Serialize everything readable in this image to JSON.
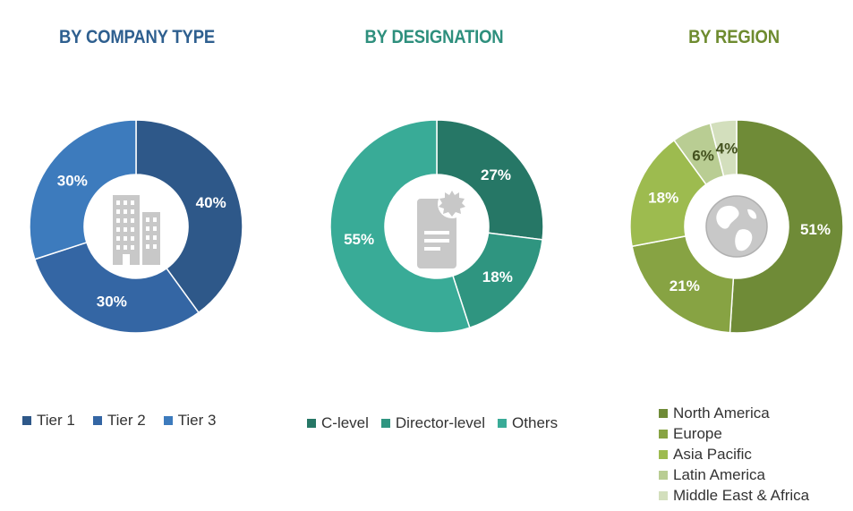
{
  "chart_data": [
    {
      "type": "pie",
      "title": "BY COMPANY TYPE",
      "title_color": "#2e5f8f",
      "categories": [
        "Tier 1",
        "Tier 2",
        "Tier 3"
      ],
      "values": [
        40,
        30,
        30
      ],
      "labels": [
        "40%",
        "30%",
        "30%"
      ],
      "colors": [
        "#2e5889",
        "#3466a4",
        "#3d7bbd"
      ],
      "center_icon": "building-icon",
      "legend_placement": "bottom"
    },
    {
      "type": "pie",
      "title": "BY DESIGNATION",
      "title_color": "#2e8f7d",
      "categories": [
        "C-level",
        "Director-level",
        "Others"
      ],
      "values": [
        27,
        18,
        55
      ],
      "labels": [
        "27%",
        "18%",
        "55%"
      ],
      "colors": [
        "#267766",
        "#2f9580",
        "#39ab97"
      ],
      "center_icon": "certificate-document-icon",
      "legend_placement": "bottom"
    },
    {
      "type": "pie",
      "title": "BY REGION",
      "title_color": "#6e8b2f",
      "categories": [
        "North America",
        "Europe",
        "Asia Pacific",
        "Latin America",
        "Middle East & Africa"
      ],
      "values": [
        51,
        21,
        18,
        6,
        4
      ],
      "labels": [
        "51%",
        "21%",
        "18%",
        "6%",
        "4%"
      ],
      "colors": [
        "#6f8b37",
        "#87a343",
        "#9dbb4f",
        "#b9cd93",
        "#d3dfbd"
      ],
      "center_icon": "globe-icon",
      "legend_placement": "bottom"
    }
  ]
}
